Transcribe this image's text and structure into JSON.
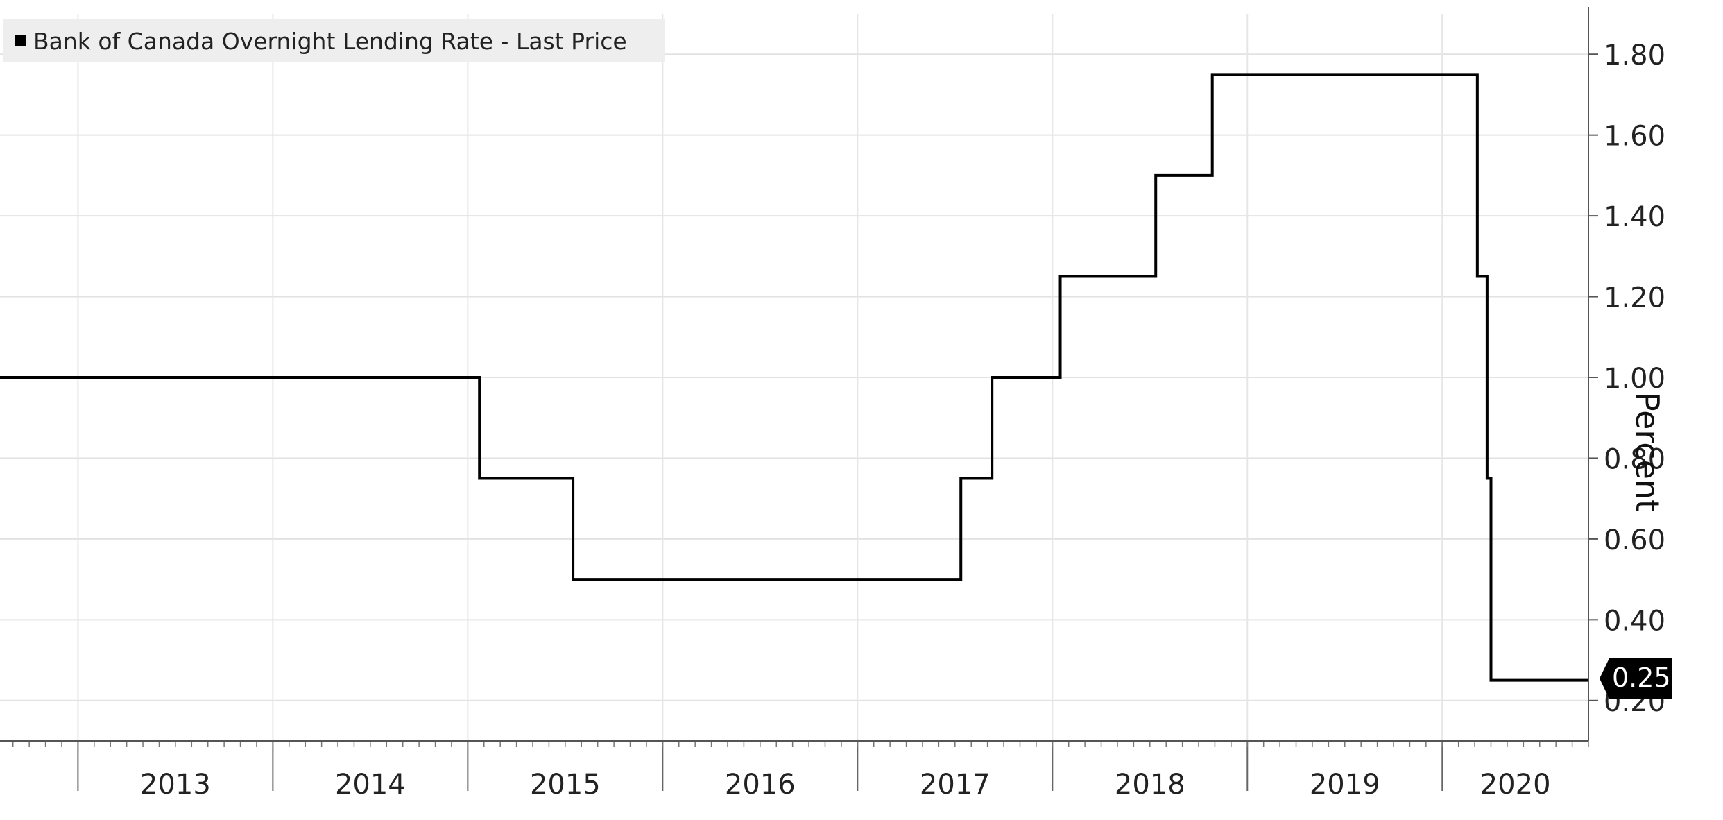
{
  "chart_data": {
    "type": "line",
    "title": "",
    "legend": {
      "label": "Bank of Canada Overnight Lending Rate - Last Price",
      "placement": "top-left"
    },
    "xlabel": "",
    "ylabel": "Percent",
    "ylim": [
      0.1,
      1.9
    ],
    "xlim": [
      2012.6,
      2020.75
    ],
    "y_axis_side": "right",
    "grid": true,
    "y_ticks": [
      0.2,
      0.4,
      0.6,
      0.8,
      1.0,
      1.2,
      1.4,
      1.6,
      1.8
    ],
    "y_tick_labels": [
      "0.20",
      "0.40",
      "0.60",
      "0.80",
      "1.00",
      "1.20",
      "1.40",
      "1.60",
      "1.80"
    ],
    "x_tick_labels": [
      "2013",
      "2014",
      "2015",
      "2016",
      "2017",
      "2018",
      "2019",
      "2020"
    ],
    "last_value_label": "0.25",
    "series": [
      {
        "name": "Bank of Canada Overnight Lending Rate - Last Price",
        "color": "#000000",
        "step": true,
        "points": [
          [
            2012.6,
            1.0
          ],
          [
            2015.06,
            0.75
          ],
          [
            2015.54,
            0.5
          ],
          [
            2017.53,
            0.75
          ],
          [
            2017.69,
            1.0
          ],
          [
            2018.04,
            1.25
          ],
          [
            2018.53,
            1.5
          ],
          [
            2018.82,
            1.75
          ],
          [
            2020.18,
            1.25
          ],
          [
            2020.23,
            0.75
          ],
          [
            2020.25,
            0.25
          ],
          [
            2020.75,
            0.25
          ]
        ]
      }
    ]
  }
}
